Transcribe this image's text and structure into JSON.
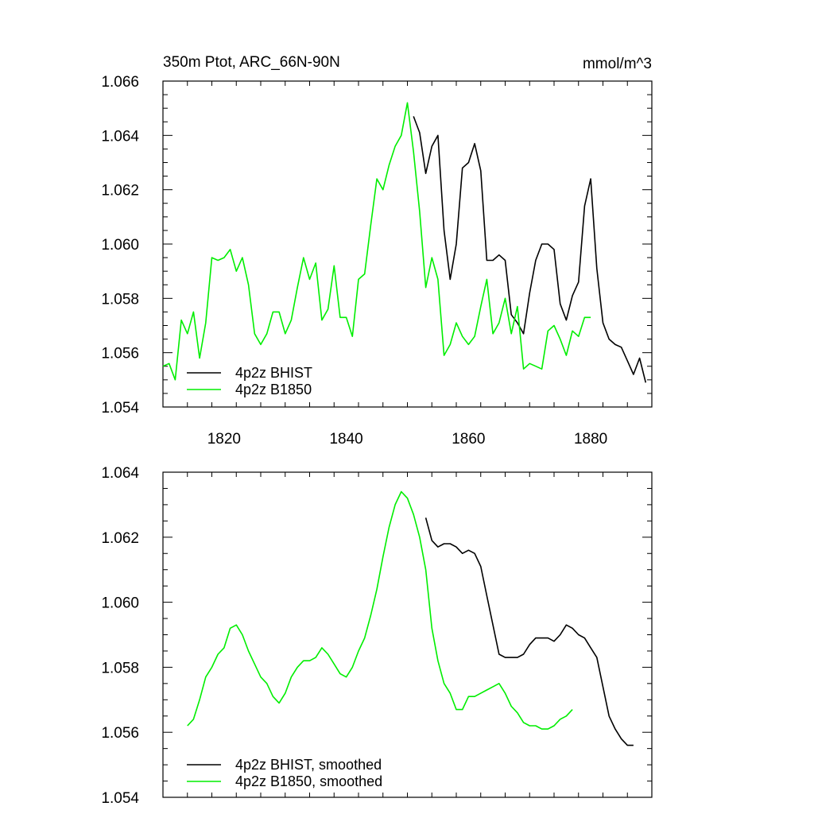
{
  "figure": {
    "title_left": "350m Ptot, ARC_66N-90N",
    "title_right": "mmol/m^3"
  },
  "colors": {
    "bhist": "#000000",
    "b1850": "#00ee00"
  },
  "chart_data": [
    {
      "type": "line",
      "title": "350m Ptot, ARC_66N-90N",
      "units": "mmol/m^3",
      "xlim": [
        1810,
        1890
      ],
      "ylim": [
        1.054,
        1.066
      ],
      "xticks": [
        1820,
        1840,
        1860,
        1880
      ],
      "xtick_labels": [
        "1820",
        "1840",
        "1860",
        "1880"
      ],
      "yticks": [
        1.054,
        1.056,
        1.058,
        1.06,
        1.062,
        1.064,
        1.066
      ],
      "ytick_labels": [
        "1.054",
        "1.056",
        "1.058",
        "1.060",
        "1.062",
        "1.064",
        "1.066"
      ],
      "legend": "bottom-left",
      "series": [
        {
          "name": "4p2z BHIST",
          "color_key": "bhist",
          "x": [
            1851,
            1852,
            1853,
            1854,
            1855,
            1856,
            1857,
            1858,
            1859,
            1860,
            1861,
            1862,
            1863,
            1864,
            1865,
            1866,
            1867,
            1868,
            1869,
            1870,
            1871,
            1872,
            1873,
            1874,
            1875,
            1876,
            1877,
            1878,
            1879,
            1880,
            1881,
            1882,
            1883,
            1884,
            1885,
            1886,
            1887,
            1888,
            1889
          ],
          "values": [
            1.0647,
            1.0641,
            1.0626,
            1.0636,
            1.064,
            1.0605,
            1.0587,
            1.06,
            1.0628,
            1.063,
            1.0637,
            1.0627,
            1.0594,
            1.0594,
            1.0596,
            1.0594,
            1.0574,
            1.0571,
            1.0567,
            1.0582,
            1.0594,
            1.06,
            1.06,
            1.0598,
            1.0578,
            1.0572,
            1.0581,
            1.0586,
            1.0614,
            1.0624,
            1.0591,
            1.0571,
            1.0565,
            1.0563,
            1.0562,
            1.0557,
            1.0552,
            1.0558,
            1.0549
          ]
        },
        {
          "name": "4p2z B1850",
          "color_key": "b1850",
          "x": [
            1810,
            1811,
            1812,
            1813,
            1814,
            1815,
            1816,
            1817,
            1818,
            1819,
            1820,
            1821,
            1822,
            1823,
            1824,
            1825,
            1826,
            1827,
            1828,
            1829,
            1830,
            1831,
            1832,
            1833,
            1834,
            1835,
            1836,
            1837,
            1838,
            1839,
            1840,
            1841,
            1842,
            1843,
            1844,
            1845,
            1846,
            1847,
            1848,
            1849,
            1850,
            1851,
            1852,
            1853,
            1854,
            1855,
            1856,
            1857,
            1858,
            1859,
            1860,
            1861,
            1862,
            1863,
            1864,
            1865,
            1866,
            1867,
            1868,
            1869,
            1870,
            1871,
            1872,
            1873,
            1874,
            1875,
            1876,
            1877,
            1878,
            1879,
            1880
          ],
          "values": [
            1.0555,
            1.0556,
            1.055,
            1.0572,
            1.0567,
            1.0575,
            1.0558,
            1.0571,
            1.0595,
            1.0594,
            1.0595,
            1.0598,
            1.059,
            1.0595,
            1.0585,
            1.0567,
            1.0563,
            1.0567,
            1.0575,
            1.0575,
            1.0567,
            1.0572,
            1.0584,
            1.0595,
            1.0587,
            1.0593,
            1.0572,
            1.0576,
            1.0592,
            1.0573,
            1.0573,
            1.0566,
            1.0587,
            1.0589,
            1.0607,
            1.0624,
            1.062,
            1.0629,
            1.0636,
            1.064,
            1.0652,
            1.0634,
            1.0612,
            1.0584,
            1.0595,
            1.0587,
            1.0559,
            1.0563,
            1.0571,
            1.0566,
            1.0563,
            1.0566,
            1.0577,
            1.0587,
            1.0567,
            1.0571,
            1.058,
            1.0567,
            1.0577,
            1.0554,
            1.0556,
            1.0555,
            1.0554,
            1.0568,
            1.057,
            1.0565,
            1.0559,
            1.0568,
            1.0566,
            1.0573,
            1.0573
          ]
        }
      ]
    },
    {
      "type": "line",
      "title": "",
      "xlim": [
        1810,
        1890
      ],
      "ylim": [
        1.054,
        1.064
      ],
      "xticks": [
        1820,
        1840,
        1860,
        1880
      ],
      "yticks": [
        1.054,
        1.056,
        1.058,
        1.06,
        1.062,
        1.064
      ],
      "ytick_labels": [
        "1.054",
        "1.056",
        "1.058",
        "1.060",
        "1.062",
        "1.064"
      ],
      "legend": "bottom-left",
      "series": [
        {
          "name": "4p2z BHIST, smoothed",
          "color_key": "bhist",
          "x": [
            1853,
            1854,
            1855,
            1856,
            1857,
            1858,
            1859,
            1860,
            1861,
            1862,
            1863,
            1864,
            1865,
            1866,
            1867,
            1868,
            1869,
            1870,
            1871,
            1872,
            1873,
            1874,
            1875,
            1876,
            1877,
            1878,
            1879,
            1880,
            1881,
            1882,
            1883,
            1884,
            1885,
            1886,
            1887
          ],
          "values": [
            1.0626,
            1.0619,
            1.0617,
            1.0618,
            1.0618,
            1.0617,
            1.0615,
            1.0616,
            1.0615,
            1.0611,
            1.0602,
            1.0593,
            1.0584,
            1.0583,
            1.0583,
            1.0583,
            1.0584,
            1.0587,
            1.0589,
            1.0589,
            1.0589,
            1.0588,
            1.059,
            1.0593,
            1.0592,
            1.059,
            1.0589,
            1.0586,
            1.0583,
            1.0574,
            1.0565,
            1.0561,
            1.0558,
            1.0556,
            1.0556
          ]
        },
        {
          "name": "4p2z B1850, smoothed",
          "color_key": "b1850",
          "x": [
            1814,
            1815,
            1816,
            1817,
            1818,
            1819,
            1820,
            1821,
            1822,
            1823,
            1824,
            1825,
            1826,
            1827,
            1828,
            1829,
            1830,
            1831,
            1832,
            1833,
            1834,
            1835,
            1836,
            1837,
            1838,
            1839,
            1840,
            1841,
            1842,
            1843,
            1844,
            1845,
            1846,
            1847,
            1848,
            1849,
            1850,
            1851,
            1852,
            1853,
            1854,
            1855,
            1856,
            1857,
            1858,
            1859,
            1860,
            1861,
            1862,
            1863,
            1864,
            1865,
            1866,
            1867,
            1868,
            1869,
            1870,
            1871,
            1872,
            1873,
            1874,
            1875,
            1876,
            1877
          ],
          "values": [
            1.0562,
            1.0564,
            1.057,
            1.0577,
            1.058,
            1.0584,
            1.0586,
            1.0592,
            1.0593,
            1.059,
            1.0585,
            1.0581,
            1.0577,
            1.0575,
            1.0571,
            1.0569,
            1.0572,
            1.0577,
            1.058,
            1.0582,
            1.0582,
            1.0583,
            1.0586,
            1.0584,
            1.0581,
            1.0578,
            1.0577,
            1.058,
            1.0585,
            1.0589,
            1.0596,
            1.0604,
            1.0614,
            1.0623,
            1.063,
            1.0634,
            1.0632,
            1.0627,
            1.062,
            1.061,
            1.0592,
            1.0582,
            1.0575,
            1.0572,
            1.0567,
            1.0567,
            1.0571,
            1.0571,
            1.0572,
            1.0573,
            1.0574,
            1.0575,
            1.0572,
            1.0568,
            1.0566,
            1.0563,
            1.0562,
            1.0562,
            1.0561,
            1.0561,
            1.0562,
            1.0564,
            1.0565,
            1.0567
          ]
        }
      ]
    }
  ]
}
